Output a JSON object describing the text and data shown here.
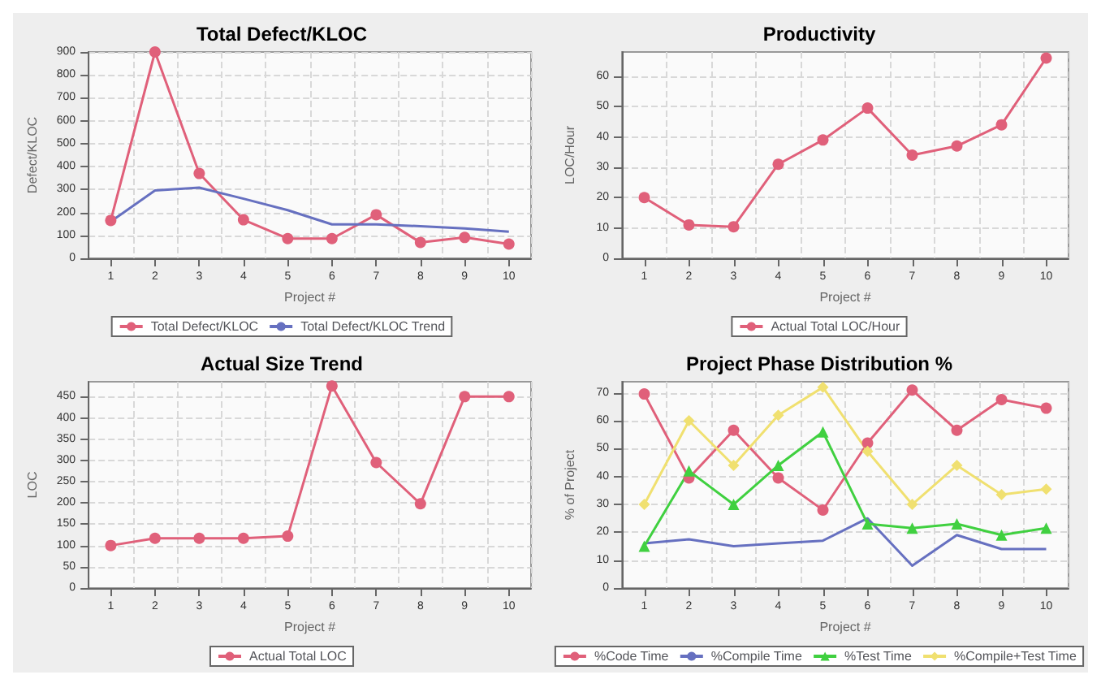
{
  "chart_data": [
    {
      "type": "line",
      "title": "Total Defect/KLOC",
      "xlabel": "Project #",
      "ylabel": "Defect/KLOC",
      "categories": [
        "1",
        "2",
        "3",
        "4",
        "5",
        "6",
        "7",
        "8",
        "9",
        "10"
      ],
      "series": [
        {
          "name": "Total Defect/KLOC",
          "color": "#e0607a",
          "marker": "circle",
          "values": [
            165,
            900,
            370,
            168,
            86,
            86,
            190,
            69,
            91,
            62
          ]
        },
        {
          "name": "Total Defect/KLOC Trend",
          "color": "#6670c0",
          "marker": "none",
          "values": [
            160,
            296,
            308,
            260,
            210,
            148,
            148,
            140,
            130,
            116
          ]
        }
      ],
      "ylim": [
        0,
        900
      ],
      "yticks": [
        0,
        100,
        200,
        300,
        400,
        500,
        600,
        700,
        800,
        900
      ],
      "grid": true,
      "legend": "bottom"
    },
    {
      "type": "line",
      "title": "Productivity",
      "xlabel": "Project #",
      "ylabel": "LOC/Hour",
      "categories": [
        "1",
        "2",
        "3",
        "4",
        "5",
        "6",
        "7",
        "8",
        "9",
        "10"
      ],
      "series": [
        {
          "name": "Actual Total LOC/Hour",
          "color": "#e0607a",
          "marker": "circle",
          "values": [
            20,
            11,
            10.4,
            31,
            39,
            49.5,
            34,
            37,
            44,
            66
          ]
        }
      ],
      "ylim": [
        0,
        68
      ],
      "yticks": [
        0,
        10,
        20,
        30,
        40,
        50,
        60
      ],
      "grid": true,
      "legend": "bottom"
    },
    {
      "type": "line",
      "title": "Actual Size Trend",
      "xlabel": "Project #",
      "ylabel": "LOC",
      "categories": [
        "1",
        "2",
        "3",
        "4",
        "5",
        "6",
        "7",
        "8",
        "9",
        "10"
      ],
      "series": [
        {
          "name": "Actual Total LOC",
          "color": "#e0607a",
          "marker": "circle",
          "values": [
            100,
            117,
            117,
            117,
            122,
            475,
            295,
            198,
            450,
            450
          ]
        }
      ],
      "ylim": [
        0,
        485
      ],
      "yticks": [
        0,
        50,
        100,
        150,
        200,
        250,
        300,
        350,
        400,
        450
      ],
      "grid": true,
      "legend": "bottom"
    },
    {
      "type": "line",
      "title": "Project Phase Distribution %",
      "xlabel": "Project #",
      "ylabel": "% of Project",
      "categories": [
        "1",
        "2",
        "3",
        "4",
        "5",
        "6",
        "7",
        "8",
        "9",
        "10"
      ],
      "series": [
        {
          "name": "%Code Time",
          "color": "#e0607a",
          "marker": "circle",
          "values": [
            69.6,
            39.5,
            56.6,
            39.5,
            28,
            52,
            71,
            56.6,
            67.6,
            64.5
          ]
        },
        {
          "name": "%Compile Time",
          "color": "#6670c0",
          "marker": "none",
          "values": [
            16,
            17.5,
            15,
            16,
            17,
            25,
            8,
            19,
            14,
            14
          ]
        },
        {
          "name": "%Test Time",
          "color": "#40d040",
          "marker": "triangle",
          "values": [
            15,
            42,
            30,
            44,
            56,
            23,
            21.5,
            23,
            19,
            21.5
          ]
        },
        {
          "name": "%Compile+Test Time",
          "color": "#f0e070",
          "marker": "diamond",
          "values": [
            30,
            60,
            44,
            62,
            72,
            49,
            30,
            44,
            33.5,
            35.5
          ]
        }
      ],
      "ylim": [
        0,
        74
      ],
      "yticks": [
        0,
        10,
        20,
        30,
        40,
        50,
        60,
        70
      ],
      "grid": true,
      "legend": "bottom"
    }
  ]
}
